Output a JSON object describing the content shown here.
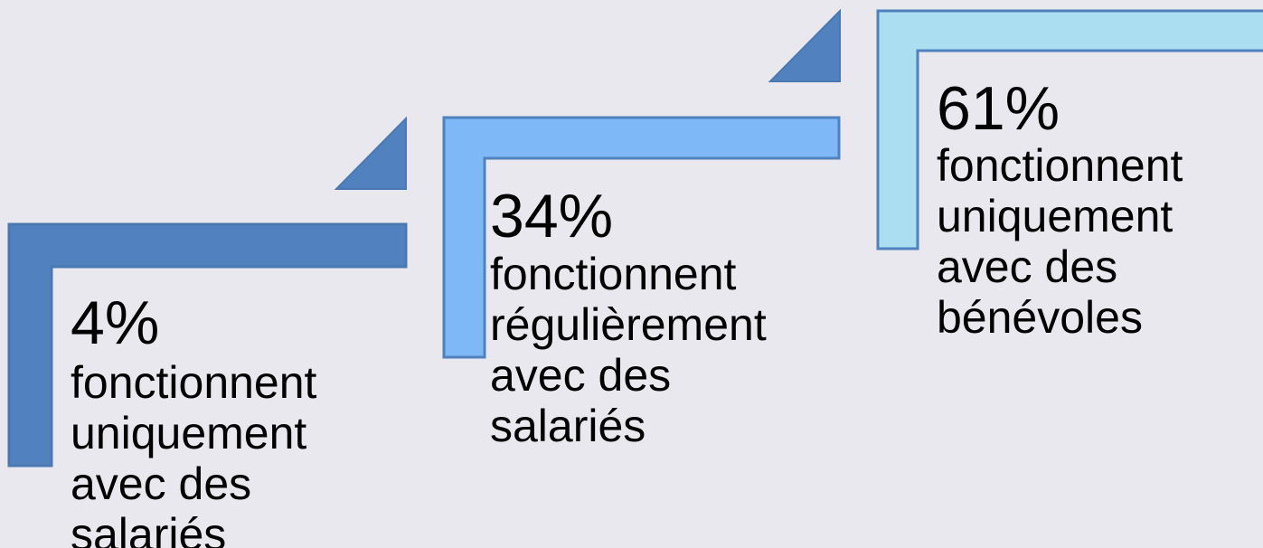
{
  "steps": [
    {
      "value": "4%",
      "lines": [
        "fonctionnent",
        "uniquement",
        "avec des",
        "salariés"
      ]
    },
    {
      "value": "34%",
      "lines": [
        "fonctionnent",
        "régulièrement",
        "avec des",
        "salariés"
      ]
    },
    {
      "value": "61%",
      "lines": [
        "fonctionnent",
        "uniquement",
        "avec des",
        "bénévoles"
      ]
    }
  ]
}
